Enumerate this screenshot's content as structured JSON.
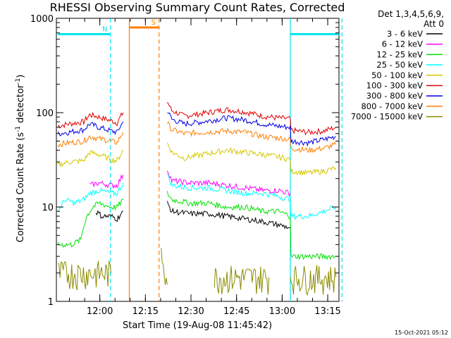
{
  "chart_data": {
    "type": "line",
    "title": "RHESSI Observing Summary Count Rates, Corrected",
    "xlabel": "Start Time (19-Aug-08 11:45:42)",
    "ylabel_main": "Corrected Count Rate (s",
    "ylabel_sup1": "-1",
    "ylabel_mid": " detector",
    "ylabel_sup2": "-1",
    "ylabel_end": ")",
    "ylog": true,
    "ylim": [
      1,
      1000
    ],
    "xlim_minutes": [
      0,
      93
    ],
    "x_tick_labels": [
      {
        "label": "12:00",
        "min": 14.3
      },
      {
        "label": "12:15",
        "min": 29.3
      },
      {
        "label": "12:30",
        "min": 44.3
      },
      {
        "label": "12:45",
        "min": 59.3
      },
      {
        "label": "13:00",
        "min": 74.3
      },
      {
        "label": "13:15",
        "min": 89.3
      }
    ],
    "y_tick_labels": [
      {
        "label": "1",
        "v": 1
      },
      {
        "label": "10",
        "v": 10
      },
      {
        "label": "100",
        "v": 100
      },
      {
        "label": "1000",
        "v": 1000
      }
    ],
    "legend": {
      "header1": "Det 1,3,4,5,6,9,",
      "header2": "Att 0",
      "entries": [
        {
          "label": "3 - 6 keV",
          "color": "#000000"
        },
        {
          "label": "6 - 12 keV",
          "color": "#ff00ff"
        },
        {
          "label": "12 - 25 keV",
          "color": "#00e000"
        },
        {
          "label": "25 - 50 keV",
          "color": "#00ffff"
        },
        {
          "label": "50 - 100 keV",
          "color": "#d4c800"
        },
        {
          "label": "100 - 300 keV",
          "color": "#e00000"
        },
        {
          "label": "300 - 800 keV",
          "color": "#0000e6"
        },
        {
          "label": "800 - 7000 keV",
          "color": "#ff7f00"
        },
        {
          "label": "7000 - 15000 keV",
          "color": "#8b8b00"
        }
      ]
    },
    "flags": [
      {
        "label": "N",
        "start": 0.5,
        "end": 17.8,
        "level": 680,
        "color": "#00e5ee"
      },
      {
        "label": "S",
        "start": 24.0,
        "end": 33.8,
        "level": 800,
        "color": "#ff7f00"
      },
      {
        "label": "",
        "start": 77.0,
        "end": 94.0,
        "level": 680,
        "color": "#00e5ee"
      }
    ],
    "vlines": [
      {
        "min": 17.8,
        "color": "#00e5ee",
        "style": "dashed"
      },
      {
        "min": 24.0,
        "color": "#ff7f00",
        "style": "solid"
      },
      {
        "min": 33.8,
        "color": "#ff7f00",
        "style": "dashed"
      },
      {
        "min": 77.0,
        "color": "#00e5ee",
        "style": "solid"
      },
      {
        "min": 94.0,
        "color": "#00e5ee",
        "style": "dashed"
      }
    ],
    "series": [
      {
        "color": "#e00000",
        "levels": [
          {
            "t": 0.5,
            "v": 72
          },
          {
            "t": 4,
            "v": 76
          },
          {
            "t": 9,
            "v": 80
          },
          {
            "t": 11,
            "v": 95
          },
          {
            "t": 14,
            "v": 90
          },
          {
            "t": 18,
            "v": 82
          },
          {
            "t": 20,
            "v": 78
          },
          {
            "t": 22,
            "v": 100
          },
          {
            "gap": true
          },
          {
            "t": 36.5,
            "v": 130
          },
          {
            "t": 38,
            "v": 105
          },
          {
            "t": 42,
            "v": 92
          },
          {
            "t": 48,
            "v": 98
          },
          {
            "t": 56,
            "v": 108
          },
          {
            "t": 62,
            "v": 102
          },
          {
            "t": 68,
            "v": 92
          },
          {
            "t": 73,
            "v": 88
          },
          {
            "t": 77,
            "v": 86
          },
          {
            "t": 77.2,
            "v": 65
          },
          {
            "t": 83,
            "v": 62
          },
          {
            "t": 88,
            "v": 64
          },
          {
            "t": 92,
            "v": 70
          }
        ]
      },
      {
        "color": "#0000e6",
        "levels": [
          {
            "t": 0.5,
            "v": 60
          },
          {
            "t": 4,
            "v": 62
          },
          {
            "t": 9,
            "v": 66
          },
          {
            "t": 11,
            "v": 76
          },
          {
            "t": 14,
            "v": 70
          },
          {
            "t": 18,
            "v": 64
          },
          {
            "t": 20,
            "v": 62
          },
          {
            "t": 22,
            "v": 80
          },
          {
            "gap": true
          },
          {
            "t": 36.5,
            "v": 105
          },
          {
            "t": 38,
            "v": 85
          },
          {
            "t": 42,
            "v": 76
          },
          {
            "t": 48,
            "v": 80
          },
          {
            "t": 56,
            "v": 88
          },
          {
            "t": 62,
            "v": 84
          },
          {
            "t": 68,
            "v": 76
          },
          {
            "t": 73,
            "v": 72
          },
          {
            "t": 77,
            "v": 70
          },
          {
            "t": 77.2,
            "v": 50
          },
          {
            "t": 83,
            "v": 48
          },
          {
            "t": 88,
            "v": 52
          },
          {
            "t": 92,
            "v": 56
          }
        ]
      },
      {
        "color": "#ff7f00",
        "levels": [
          {
            "t": 0.5,
            "v": 46
          },
          {
            "t": 4,
            "v": 48
          },
          {
            "t": 9,
            "v": 50
          },
          {
            "t": 11,
            "v": 56
          },
          {
            "t": 14,
            "v": 53
          },
          {
            "t": 18,
            "v": 50
          },
          {
            "t": 20,
            "v": 48
          },
          {
            "t": 22,
            "v": 62
          },
          {
            "gap": true
          },
          {
            "t": 36.5,
            "v": 78
          },
          {
            "t": 38,
            "v": 66
          },
          {
            "t": 42,
            "v": 60
          },
          {
            "t": 48,
            "v": 62
          },
          {
            "t": 56,
            "v": 64
          },
          {
            "t": 62,
            "v": 62
          },
          {
            "t": 68,
            "v": 56
          },
          {
            "t": 73,
            "v": 54
          },
          {
            "t": 77,
            "v": 52
          },
          {
            "t": 77.2,
            "v": 42
          },
          {
            "t": 83,
            "v": 40
          },
          {
            "t": 88,
            "v": 42
          },
          {
            "t": 92,
            "v": 46
          }
        ]
      },
      {
        "color": "#d4c800",
        "levels": [
          {
            "t": 0.5,
            "v": 28
          },
          {
            "t": 4,
            "v": 30
          },
          {
            "t": 9,
            "v": 31
          },
          {
            "t": 11,
            "v": 38
          },
          {
            "t": 14,
            "v": 36
          },
          {
            "t": 18,
            "v": 32
          },
          {
            "t": 20,
            "v": 31
          },
          {
            "t": 22,
            "v": 40
          },
          {
            "gap": true
          },
          {
            "t": 36.5,
            "v": 48
          },
          {
            "t": 38,
            "v": 38
          },
          {
            "t": 42,
            "v": 33
          },
          {
            "t": 48,
            "v": 36
          },
          {
            "t": 56,
            "v": 40
          },
          {
            "t": 62,
            "v": 38
          },
          {
            "t": 68,
            "v": 36
          },
          {
            "t": 73,
            "v": 34
          },
          {
            "t": 77,
            "v": 32
          },
          {
            "t": 77.2,
            "v": 24
          },
          {
            "t": 83,
            "v": 23
          },
          {
            "t": 88,
            "v": 24
          },
          {
            "t": 92,
            "v": 26
          }
        ]
      },
      {
        "color": "#ff00ff",
        "levels": [
          {
            "t": 11,
            "v": 17
          },
          {
            "t": 14,
            "v": 18
          },
          {
            "t": 18,
            "v": 17
          },
          {
            "t": 20,
            "v": 17
          },
          {
            "t": 22,
            "v": 22
          },
          {
            "gap": true
          },
          {
            "t": 36.5,
            "v": 25
          },
          {
            "t": 38,
            "v": 19
          },
          {
            "t": 44,
            "v": 18
          },
          {
            "t": 50,
            "v": 18
          },
          {
            "t": 56,
            "v": 17
          },
          {
            "t": 62,
            "v": 16
          },
          {
            "t": 68,
            "v": 15
          },
          {
            "t": 73,
            "v": 15
          },
          {
            "t": 77,
            "v": 14
          }
        ]
      },
      {
        "color": "#00ffff",
        "levels": [
          {
            "t": 0.5,
            "v": 9
          },
          {
            "t": 3,
            "v": 12
          },
          {
            "t": 6,
            "v": 11
          },
          {
            "t": 9,
            "v": 12
          },
          {
            "t": 11,
            "v": 14
          },
          {
            "t": 14,
            "v": 15
          },
          {
            "t": 18,
            "v": 14
          },
          {
            "t": 20,
            "v": 14
          },
          {
            "t": 22,
            "v": 18
          },
          {
            "gap": true
          },
          {
            "t": 36.5,
            "v": 22
          },
          {
            "t": 38,
            "v": 17
          },
          {
            "t": 44,
            "v": 16
          },
          {
            "t": 50,
            "v": 16
          },
          {
            "t": 56,
            "v": 15
          },
          {
            "t": 62,
            "v": 14
          },
          {
            "t": 68,
            "v": 14
          },
          {
            "t": 73,
            "v": 13
          },
          {
            "t": 77,
            "v": 12
          },
          {
            "t": 77.2,
            "v": 8
          },
          {
            "t": 83,
            "v": 8
          },
          {
            "t": 88,
            "v": 9
          },
          {
            "t": 92,
            "v": 10
          }
        ]
      },
      {
        "color": "#00e000",
        "levels": [
          {
            "t": 0.5,
            "v": 4
          },
          {
            "t": 5,
            "v": 4
          },
          {
            "t": 8,
            "v": 4.5
          },
          {
            "t": 10,
            "v": 8
          },
          {
            "t": 12,
            "v": 10
          },
          {
            "t": 14,
            "v": 11
          },
          {
            "t": 18,
            "v": 10
          },
          {
            "t": 20,
            "v": 10
          },
          {
            "t": 22,
            "v": 12
          },
          {
            "gap": true
          },
          {
            "t": 36.5,
            "v": 14
          },
          {
            "t": 38,
            "v": 12
          },
          {
            "t": 44,
            "v": 11
          },
          {
            "t": 50,
            "v": 11
          },
          {
            "t": 56,
            "v": 10
          },
          {
            "t": 62,
            "v": 10
          },
          {
            "t": 68,
            "v": 9
          },
          {
            "t": 73,
            "v": 9
          },
          {
            "t": 77,
            "v": 8
          },
          {
            "t": 77.2,
            "v": 3
          },
          {
            "t": 83,
            "v": 3
          },
          {
            "t": 88,
            "v": 3
          },
          {
            "t": 92,
            "v": 3
          }
        ]
      },
      {
        "color": "#000000",
        "levels": [
          {
            "t": 13,
            "v": 9
          },
          {
            "t": 15,
            "v": 8
          },
          {
            "t": 18,
            "v": 8
          },
          {
            "t": 20,
            "v": 7.5
          },
          {
            "t": 22,
            "v": 9
          },
          {
            "gap": true
          },
          {
            "t": 36.5,
            "v": 11
          },
          {
            "t": 38,
            "v": 9
          },
          {
            "t": 44,
            "v": 8.5
          },
          {
            "t": 50,
            "v": 8.5
          },
          {
            "t": 56,
            "v": 8
          },
          {
            "t": 62,
            "v": 7.5
          },
          {
            "t": 68,
            "v": 7
          },
          {
            "t": 73,
            "v": 6.5
          },
          {
            "t": 77,
            "v": 6
          }
        ]
      },
      {
        "color": "#8b8b00",
        "levels": [
          {
            "t": 0.5,
            "v": 2
          },
          {
            "t": 18,
            "v": 2
          },
          {
            "gap": true
          },
          {
            "t": 34.5,
            "v": 3.5
          },
          {
            "t": 36.5,
            "v": 1.5
          },
          {
            "gap": true
          },
          {
            "t": 52,
            "v": 1.8
          },
          {
            "t": 70,
            "v": 1.8
          },
          {
            "gap": true
          },
          {
            "t": 77,
            "v": 1.8
          },
          {
            "t": 92,
            "v": 1.8
          }
        ]
      }
    ],
    "footer_stamp": "15-Oct-2021 05:12"
  }
}
